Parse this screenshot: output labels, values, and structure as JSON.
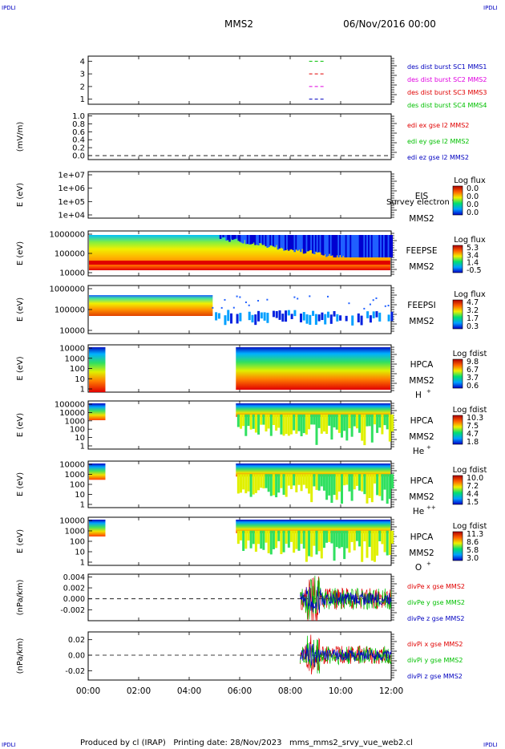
{
  "corner_marks": {
    "tl": "IPDLI",
    "tr": "IPDLI",
    "bl": "IPDLI",
    "br": "IPDLI"
  },
  "header": {
    "spacecraft": "MMS2",
    "date": "06/Nov/2016 00:00"
  },
  "footer": {
    "text": "Produced by cl (IRAP)   Printing date: 28/Nov/2023   mms_mms2_srvy_vue_web2.cl"
  },
  "colors": {
    "red": "#e00000",
    "green": "#00c000",
    "blue": "#0000c0",
    "magenta": "#e000e0",
    "black": "#000000"
  },
  "chart_data": [
    {
      "type": "line",
      "name": "burst-availability",
      "x_ticks": [
        "00:00",
        "02:00",
        "04:00",
        "06:00",
        "08:00",
        "10:00",
        "12:00"
      ],
      "ylim": [
        0.6,
        4.4
      ],
      "y_ticks": [
        "1",
        "2",
        "3",
        "4"
      ],
      "ylabel": "",
      "legend": [
        {
          "label": "des dist burst SC1 MMS1",
          "color": "#0000c0"
        },
        {
          "label": "des dist burst SC2 MMS2",
          "color": "#e000e0"
        },
        {
          "label": "des dist burst SC3 MMS3",
          "color": "#e00000"
        },
        {
          "label": "des dist burst SC4 MMS4",
          "color": "#00c000"
        }
      ],
      "series": [
        {
          "level": 4,
          "color": "#00c000",
          "segments": [
            [
              8.75,
              9.35
            ]
          ]
        },
        {
          "level": 3,
          "color": "#e00000",
          "segments": [
            [
              8.75,
              9.35
            ]
          ]
        },
        {
          "level": 2,
          "color": "#e000e0",
          "segments": [
            [
              8.75,
              9.35
            ]
          ]
        },
        {
          "level": 1,
          "color": "#0000c0",
          "segments": [
            [
              8.75,
              9.35
            ]
          ]
        }
      ]
    },
    {
      "type": "line",
      "name": "edi-e-field",
      "ylabel": "(mV/m)",
      "ylim": [
        -0.1,
        1.05
      ],
      "y_ticks": [
        "1.0",
        "0.8",
        "0.6",
        "0.4",
        "0.2",
        "0.0"
      ],
      "legend": [
        {
          "label": "edi ex gse l2 MMS2",
          "color": "#e00000"
        },
        {
          "label": "edi ey gse l2 MMS2",
          "color": "#00c000"
        },
        {
          "label": "edi ez gse l2 MMS2",
          "color": "#0000c0"
        }
      ]
    },
    {
      "type": "heatmap",
      "name": "eis",
      "ylabel": "E (eV)",
      "y_ticks": [
        "1e+07",
        "1e+06",
        "1e+05",
        "1e+04"
      ],
      "instrument": "EIS",
      "overlay_text": "Survey electron to",
      "sc": "MMS2",
      "colorbar_title": "Log flux",
      "colorbar_ticks": [
        "0.0",
        "0.0",
        "0.0",
        "0.0"
      ]
    },
    {
      "type": "heatmap",
      "name": "feeps-electrons",
      "ylabel": "E (eV)",
      "y_ticks": [
        "1000000",
        "100000",
        "10000"
      ],
      "instrument": "FEEPSE",
      "sc": "MMS2",
      "colorbar_title": "Log flux",
      "colorbar_ticks": [
        "5.3",
        "3.4",
        "1.4",
        "-0.5"
      ]
    },
    {
      "type": "heatmap",
      "name": "feeps-ions",
      "ylabel": "E (eV)",
      "y_ticks": [
        "1000000",
        "100000",
        "10000"
      ],
      "instrument": "FEEPSI",
      "sc": "MMS2",
      "colorbar_title": "Log flux",
      "colorbar_ticks": [
        "4.7",
        "3.2",
        "1.7",
        "0.3"
      ]
    },
    {
      "type": "heatmap",
      "name": "hpca-h",
      "ylabel": "E (eV)",
      "y_ticks": [
        "10000",
        "1000",
        "100",
        "10",
        "1"
      ],
      "instrument": "HPCA",
      "sc": "MMS2",
      "species": "H",
      "species_sup": "+",
      "colorbar_title": "Log fdist",
      "colorbar_ticks": [
        "9.8",
        "6.7",
        "3.7",
        "0.6"
      ]
    },
    {
      "type": "heatmap",
      "name": "hpca-he",
      "ylabel": "E (eV)",
      "y_ticks": [
        "100000",
        "10000",
        "1000",
        "100",
        "10",
        "1"
      ],
      "instrument": "HPCA",
      "sc": "MMS2",
      "species": "He",
      "species_sup": "+",
      "colorbar_title": "Log fdist",
      "colorbar_ticks": [
        "10.3",
        "7.5",
        "4.7",
        "1.8"
      ]
    },
    {
      "type": "heatmap",
      "name": "hpca-he2",
      "ylabel": "E (eV)",
      "y_ticks": [
        "10000",
        "1000",
        "100",
        "10",
        "1"
      ],
      "instrument": "HPCA",
      "sc": "MMS2",
      "species": "He",
      "species_sup": "++",
      "colorbar_title": "Log fdist",
      "colorbar_ticks": [
        "10.0",
        "7.2",
        "4.4",
        "1.5"
      ]
    },
    {
      "type": "heatmap",
      "name": "hpca-o",
      "ylabel": "E (eV)",
      "y_ticks": [
        "10000",
        "1000",
        "100",
        "10",
        "1"
      ],
      "instrument": "HPCA",
      "sc": "MMS2",
      "species": "O",
      "species_sup": "+",
      "colorbar_title": "Log fdist",
      "colorbar_ticks": [
        "11.3",
        "8.6",
        "5.8",
        "3.0"
      ]
    },
    {
      "type": "line",
      "name": "div-pe",
      "ylabel": "(nPa/km)",
      "ylim": [
        -0.004,
        0.0045
      ],
      "y_ticks": [
        "0.004",
        "0.002",
        "0.000",
        "-0.002"
      ],
      "y_tick_values": [
        0.004,
        0.002,
        0.0,
        -0.002
      ],
      "noise_start_hours": 8.4,
      "noise_amplitude": 0.002,
      "legend": [
        {
          "label": "divPe x gse MMS2",
          "color": "#e00000"
        },
        {
          "label": "divPe y gse MMS2",
          "color": "#00c000"
        },
        {
          "label": "divPe z gse MMS2",
          "color": "#0000c0"
        }
      ]
    },
    {
      "type": "line",
      "name": "div-pi",
      "ylabel": "(nPa/km)",
      "ylim": [
        -0.032,
        0.03
      ],
      "y_ticks": [
        "0.02",
        "0.00",
        "-0.02"
      ],
      "y_tick_values": [
        0.02,
        0.0,
        -0.02
      ],
      "noise_start_hours": 8.4,
      "noise_amplitude": 0.012,
      "legend": [
        {
          "label": "divPi x gse MMS2",
          "color": "#e00000"
        },
        {
          "label": "divPi y gse MMS2",
          "color": "#00c000"
        },
        {
          "label": "divPi z gse MMS2",
          "color": "#0000c0"
        }
      ]
    }
  ]
}
